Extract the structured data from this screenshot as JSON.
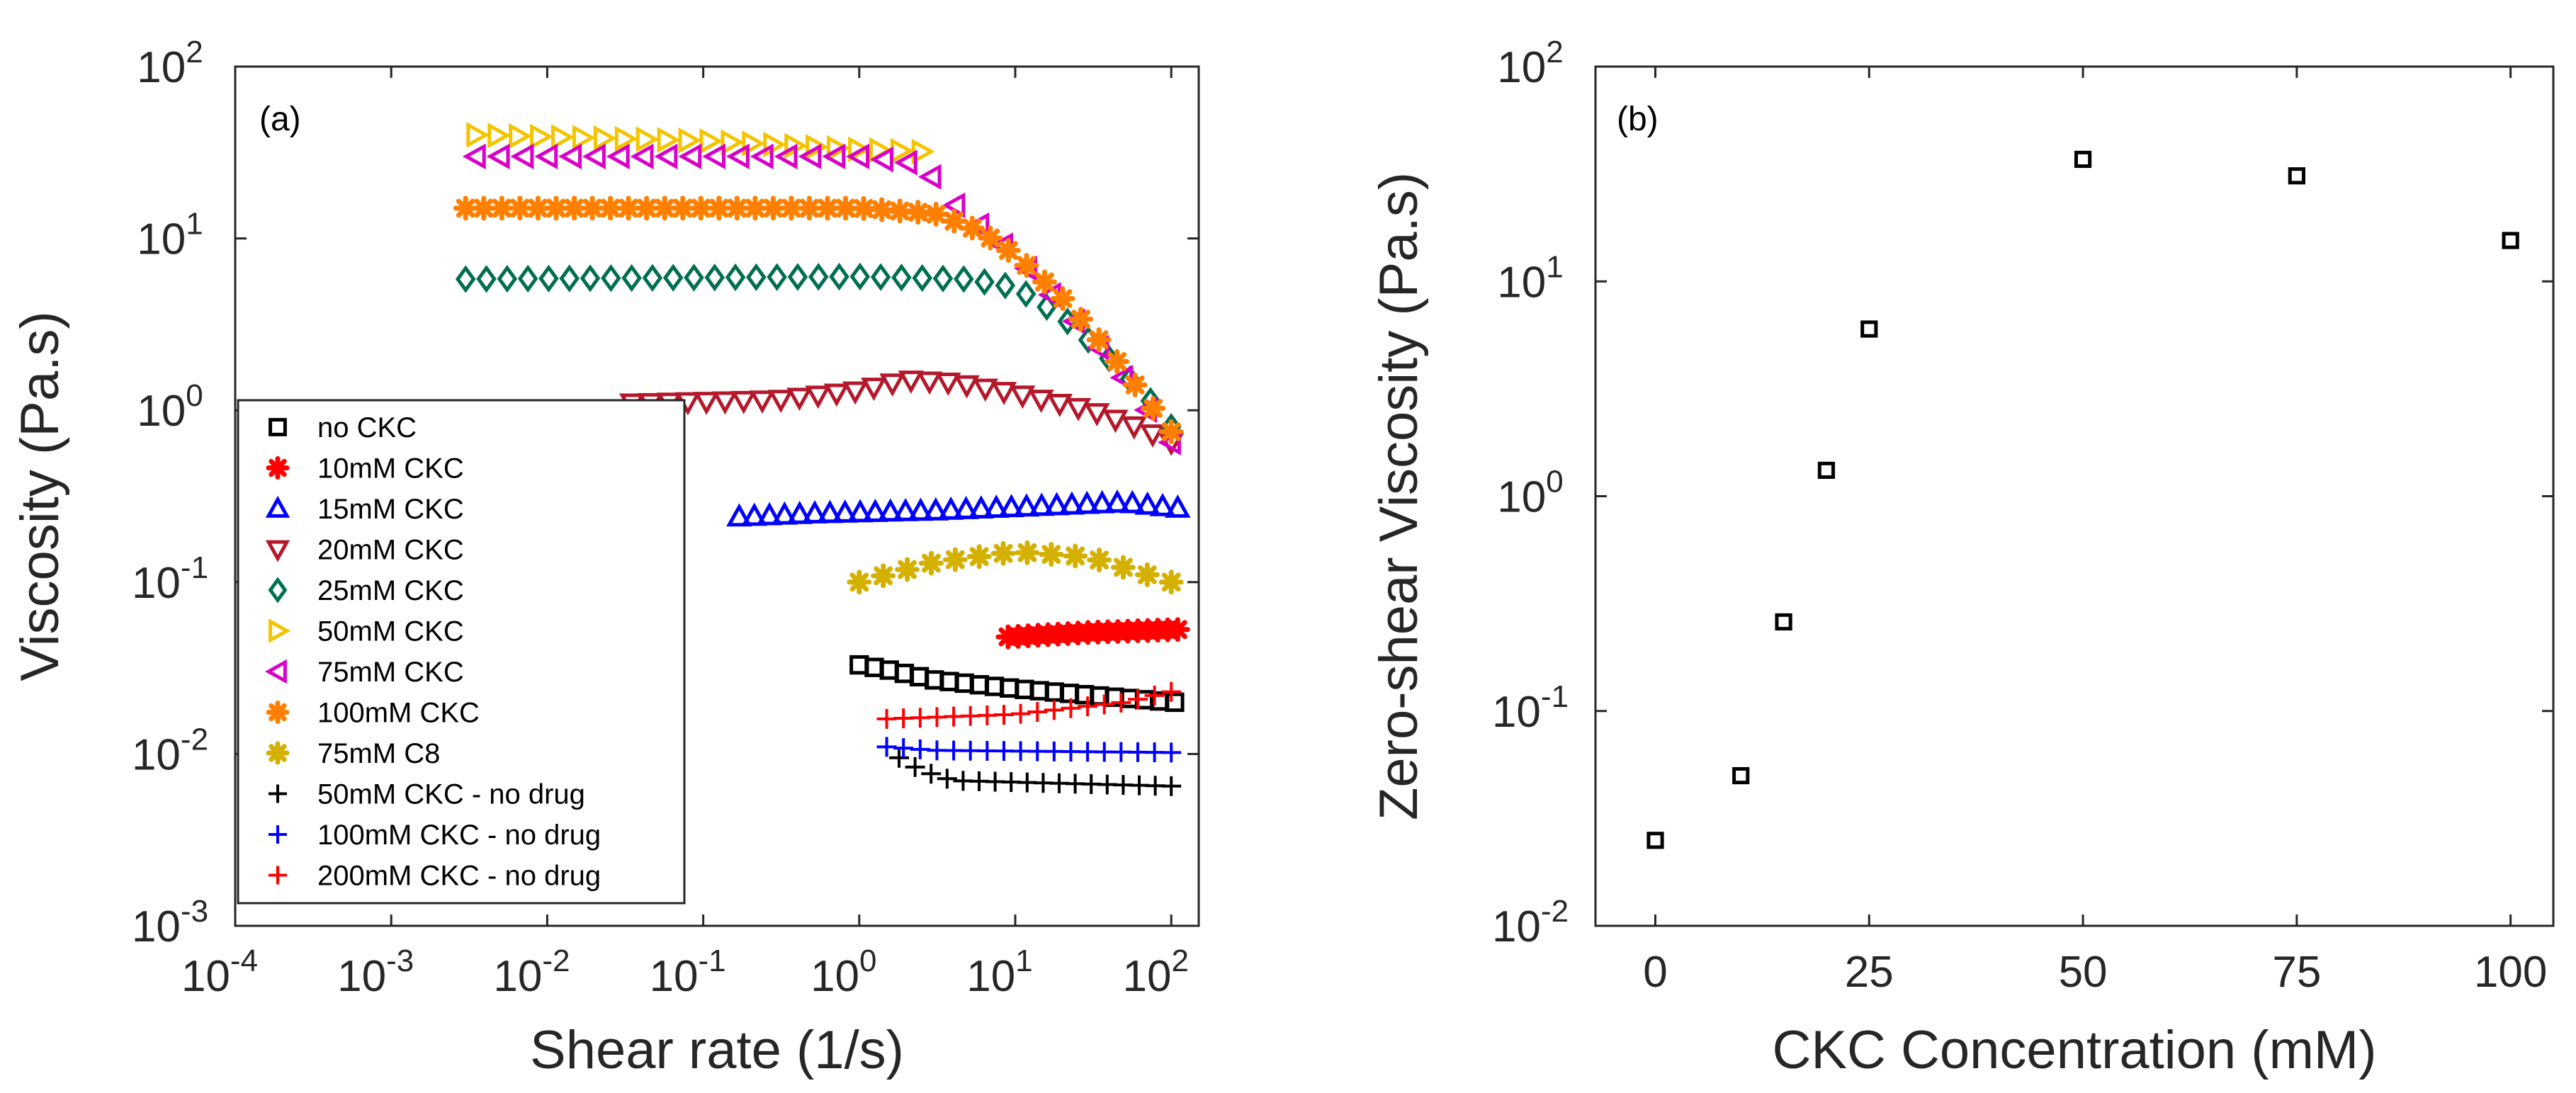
{
  "chart_data": [
    {
      "panel": "(a)",
      "type": "scatter",
      "xscale": "log",
      "yscale": "log",
      "xlabel": "Shear rate (1/s)",
      "ylabel": "Viscosity (Pa.s)",
      "xlim": [
        0.0001,
        150
      ],
      "ylim": [
        0.001,
        100
      ],
      "xticks": [
        {
          "base": "10",
          "exp": "-4",
          "value": 0.0001
        },
        {
          "base": "10",
          "exp": "-3",
          "value": 0.001
        },
        {
          "base": "10",
          "exp": "-2",
          "value": 0.01
        },
        {
          "base": "10",
          "exp": "-1",
          "value": 0.1
        },
        {
          "base": "10",
          "exp": "0",
          "value": 1
        },
        {
          "base": "10",
          "exp": "1",
          "value": 10
        },
        {
          "base": "10",
          "exp": "2",
          "value": 100
        }
      ],
      "yticks": [
        {
          "base": "10",
          "exp": "-3",
          "value": 0.001
        },
        {
          "base": "10",
          "exp": "-2",
          "value": 0.01
        },
        {
          "base": "10",
          "exp": "-1",
          "value": 0.1
        },
        {
          "base": "10",
          "exp": "0",
          "value": 1
        },
        {
          "base": "10",
          "exp": "1",
          "value": 10
        },
        {
          "base": "10",
          "exp": "2",
          "value": 100
        }
      ],
      "legend_position": "bottom-left",
      "series": [
        {
          "name": "no CKC",
          "marker": "square",
          "color": "#000000",
          "x_start": 1.0,
          "x_end": 105,
          "n": 22,
          "curve": [
            [
              1.0,
              0.033
            ],
            [
              1.5,
              0.031
            ],
            [
              3,
              0.027
            ],
            [
              10,
              0.024
            ],
            [
              30,
              0.022
            ],
            [
              105,
              0.02
            ]
          ]
        },
        {
          "name": "10mM CKC",
          "marker": "star",
          "color": "#ff0000",
          "x_start": 9,
          "x_end": 110,
          "n": 18,
          "curve": [
            [
              9,
              0.048
            ],
            [
              30,
              0.051
            ],
            [
              110,
              0.053
            ]
          ]
        },
        {
          "name": "15mM CKC",
          "marker": "triangle-up",
          "color": "#0000ff",
          "x_start": 0.17,
          "x_end": 110,
          "n": 30,
          "curve": [
            [
              0.17,
              0.24
            ],
            [
              0.5,
              0.25
            ],
            [
              3,
              0.26
            ],
            [
              20,
              0.28
            ],
            [
              50,
              0.29
            ],
            [
              110,
              0.27
            ]
          ]
        },
        {
          "name": "20mM CKC",
          "marker": "triangle-down",
          "color": "#b5182b",
          "x_start": 0.035,
          "x_end": 100,
          "n": 30,
          "curve": [
            [
              0.035,
              1.1
            ],
            [
              0.3,
              1.15
            ],
            [
              1,
              1.3
            ],
            [
              2,
              1.5
            ],
            [
              4,
              1.45
            ],
            [
              10,
              1.25
            ],
            [
              30,
              1.0
            ],
            [
              60,
              0.8
            ],
            [
              100,
              0.65
            ]
          ]
        },
        {
          "name": "25mM CKC",
          "marker": "diamond",
          "color": "#006e50",
          "x_start": 0.003,
          "x_end": 100,
          "n": 35,
          "curve": [
            [
              0.003,
              5.8
            ],
            [
              1,
              6.0
            ],
            [
              5,
              5.8
            ],
            [
              10,
              5.2
            ],
            [
              20,
              3.5
            ],
            [
              40,
              2.0
            ],
            [
              70,
              1.2
            ],
            [
              100,
              0.8
            ]
          ]
        },
        {
          "name": "50mM CKC",
          "marker": "triangle-right",
          "color": "#f4c400",
          "x_start": 0.0035,
          "x_end": 2.5,
          "n": 22,
          "curve": [
            [
              0.0035,
              40
            ],
            [
              0.1,
              37
            ],
            [
              1,
              33
            ],
            [
              2.5,
              32
            ]
          ]
        },
        {
          "name": "75mM CKC",
          "marker": "triangle-left",
          "color": "#d900c8",
          "x_start": 0.0035,
          "x_end": 100,
          "n": 30,
          "curve": [
            [
              0.0035,
              30
            ],
            [
              1,
              30
            ],
            [
              2.5,
              27
            ],
            [
              4,
              16
            ],
            [
              10,
              8
            ],
            [
              20,
              4
            ],
            [
              40,
              2
            ],
            [
              100,
              0.65
            ]
          ]
        },
        {
          "name": "100mM CKC",
          "marker": "star",
          "color": "#ff7f00",
          "x_start": 0.003,
          "x_end": 100,
          "n": 40,
          "curve": [
            [
              0.003,
              15
            ],
            [
              1,
              15
            ],
            [
              3,
              14
            ],
            [
              6,
              11
            ],
            [
              10,
              8
            ],
            [
              20,
              4.5
            ],
            [
              40,
              2.2
            ],
            [
              100,
              0.75
            ]
          ]
        },
        {
          "name": "75mM C8",
          "marker": "star",
          "color": "#d4b000",
          "x_start": 1.0,
          "x_end": 100,
          "n": 14,
          "curve": [
            [
              1.0,
              0.1
            ],
            [
              3,
              0.13
            ],
            [
              10,
              0.15
            ],
            [
              30,
              0.14
            ],
            [
              100,
              0.1
            ]
          ]
        },
        {
          "name": "50mM CKC - no drug",
          "marker": "plus",
          "color": "#000000",
          "x_start": 1.8,
          "x_end": 100,
          "n": 18,
          "curve": [
            [
              1.8,
              0.0095
            ],
            [
              2.5,
              0.008
            ],
            [
              4,
              0.007
            ],
            [
              100,
              0.0065
            ]
          ]
        },
        {
          "name": "100mM CKC - no drug",
          "marker": "plus",
          "color": "#0000ff",
          "x_start": 1.5,
          "x_end": 100,
          "n": 18,
          "curve": [
            [
              1.5,
              0.011
            ],
            [
              3,
              0.0105
            ],
            [
              100,
              0.0102
            ]
          ]
        },
        {
          "name": "200mM CKC - no drug",
          "marker": "plus",
          "color": "#ff0000",
          "x_start": 1.5,
          "x_end": 100,
          "n": 18,
          "curve": [
            [
              1.5,
              0.016
            ],
            [
              10,
              0.017
            ],
            [
              50,
              0.02
            ],
            [
              100,
              0.023
            ]
          ]
        }
      ]
    },
    {
      "panel": "(b)",
      "type": "scatter",
      "xscale": "linear",
      "yscale": "log",
      "xlabel": "CKC Concentration (mM)",
      "ylabel": "Zero-shear Viscosity (Pa.s)",
      "xlim": [
        -7,
        105
      ],
      "ylim": [
        0.01,
        100
      ],
      "xticks": [
        {
          "label": "0",
          "value": 0
        },
        {
          "label": "25",
          "value": 25
        },
        {
          "label": "50",
          "value": 50
        },
        {
          "label": "75",
          "value": 75
        },
        {
          "label": "100",
          "value": 100
        }
      ],
      "yticks": [
        {
          "base": "10",
          "exp": "-2",
          "value": 0.01
        },
        {
          "base": "10",
          "exp": "-1",
          "value": 0.1
        },
        {
          "base": "10",
          "exp": "0",
          "value": 1
        },
        {
          "base": "10",
          "exp": "1",
          "value": 10
        },
        {
          "base": "10",
          "exp": "2",
          "value": 100
        }
      ],
      "marker": "square",
      "color": "#000000",
      "points": [
        [
          0,
          0.025
        ],
        [
          10,
          0.05
        ],
        [
          15,
          0.26
        ],
        [
          20,
          1.32
        ],
        [
          25,
          6.0
        ],
        [
          50,
          37
        ],
        [
          75,
          31
        ],
        [
          100,
          15.5
        ]
      ]
    }
  ]
}
